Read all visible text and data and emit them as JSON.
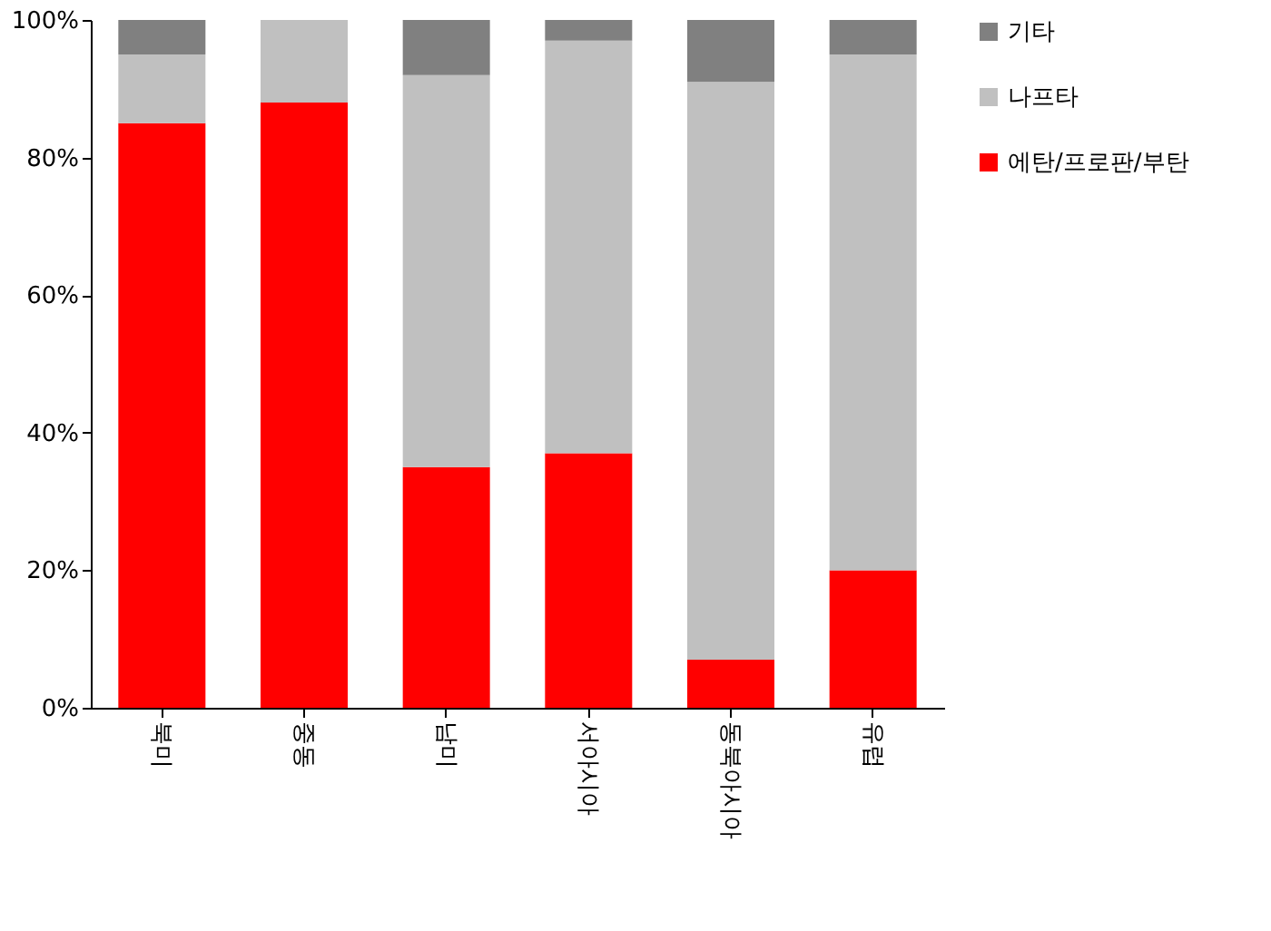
{
  "chart_data": {
    "type": "bar",
    "stacked": true,
    "categories": [
      "북미",
      "중동",
      "남미",
      "서아시아",
      "동북아시아",
      "유럽"
    ],
    "series": [
      {
        "name": "에탄/프로판/부탄",
        "color": "#ff0000",
        "values": [
          85,
          88,
          35,
          37,
          7,
          20
        ]
      },
      {
        "name": "나프타",
        "color": "#c0c0c0",
        "values": [
          10,
          12,
          57,
          60,
          84,
          75
        ]
      },
      {
        "name": "기타",
        "color": "#808080",
        "values": [
          5,
          0,
          8,
          3,
          9,
          5
        ]
      }
    ],
    "ylim": [
      0,
      100
    ],
    "yticks": [
      {
        "value": 0,
        "label": "0%"
      },
      {
        "value": 20,
        "label": "20%"
      },
      {
        "value": 40,
        "label": "40%"
      },
      {
        "value": 60,
        "label": "60%"
      },
      {
        "value": 80,
        "label": "80%"
      },
      {
        "value": 100,
        "label": "100%"
      }
    ],
    "grid": false,
    "legend": "right"
  }
}
